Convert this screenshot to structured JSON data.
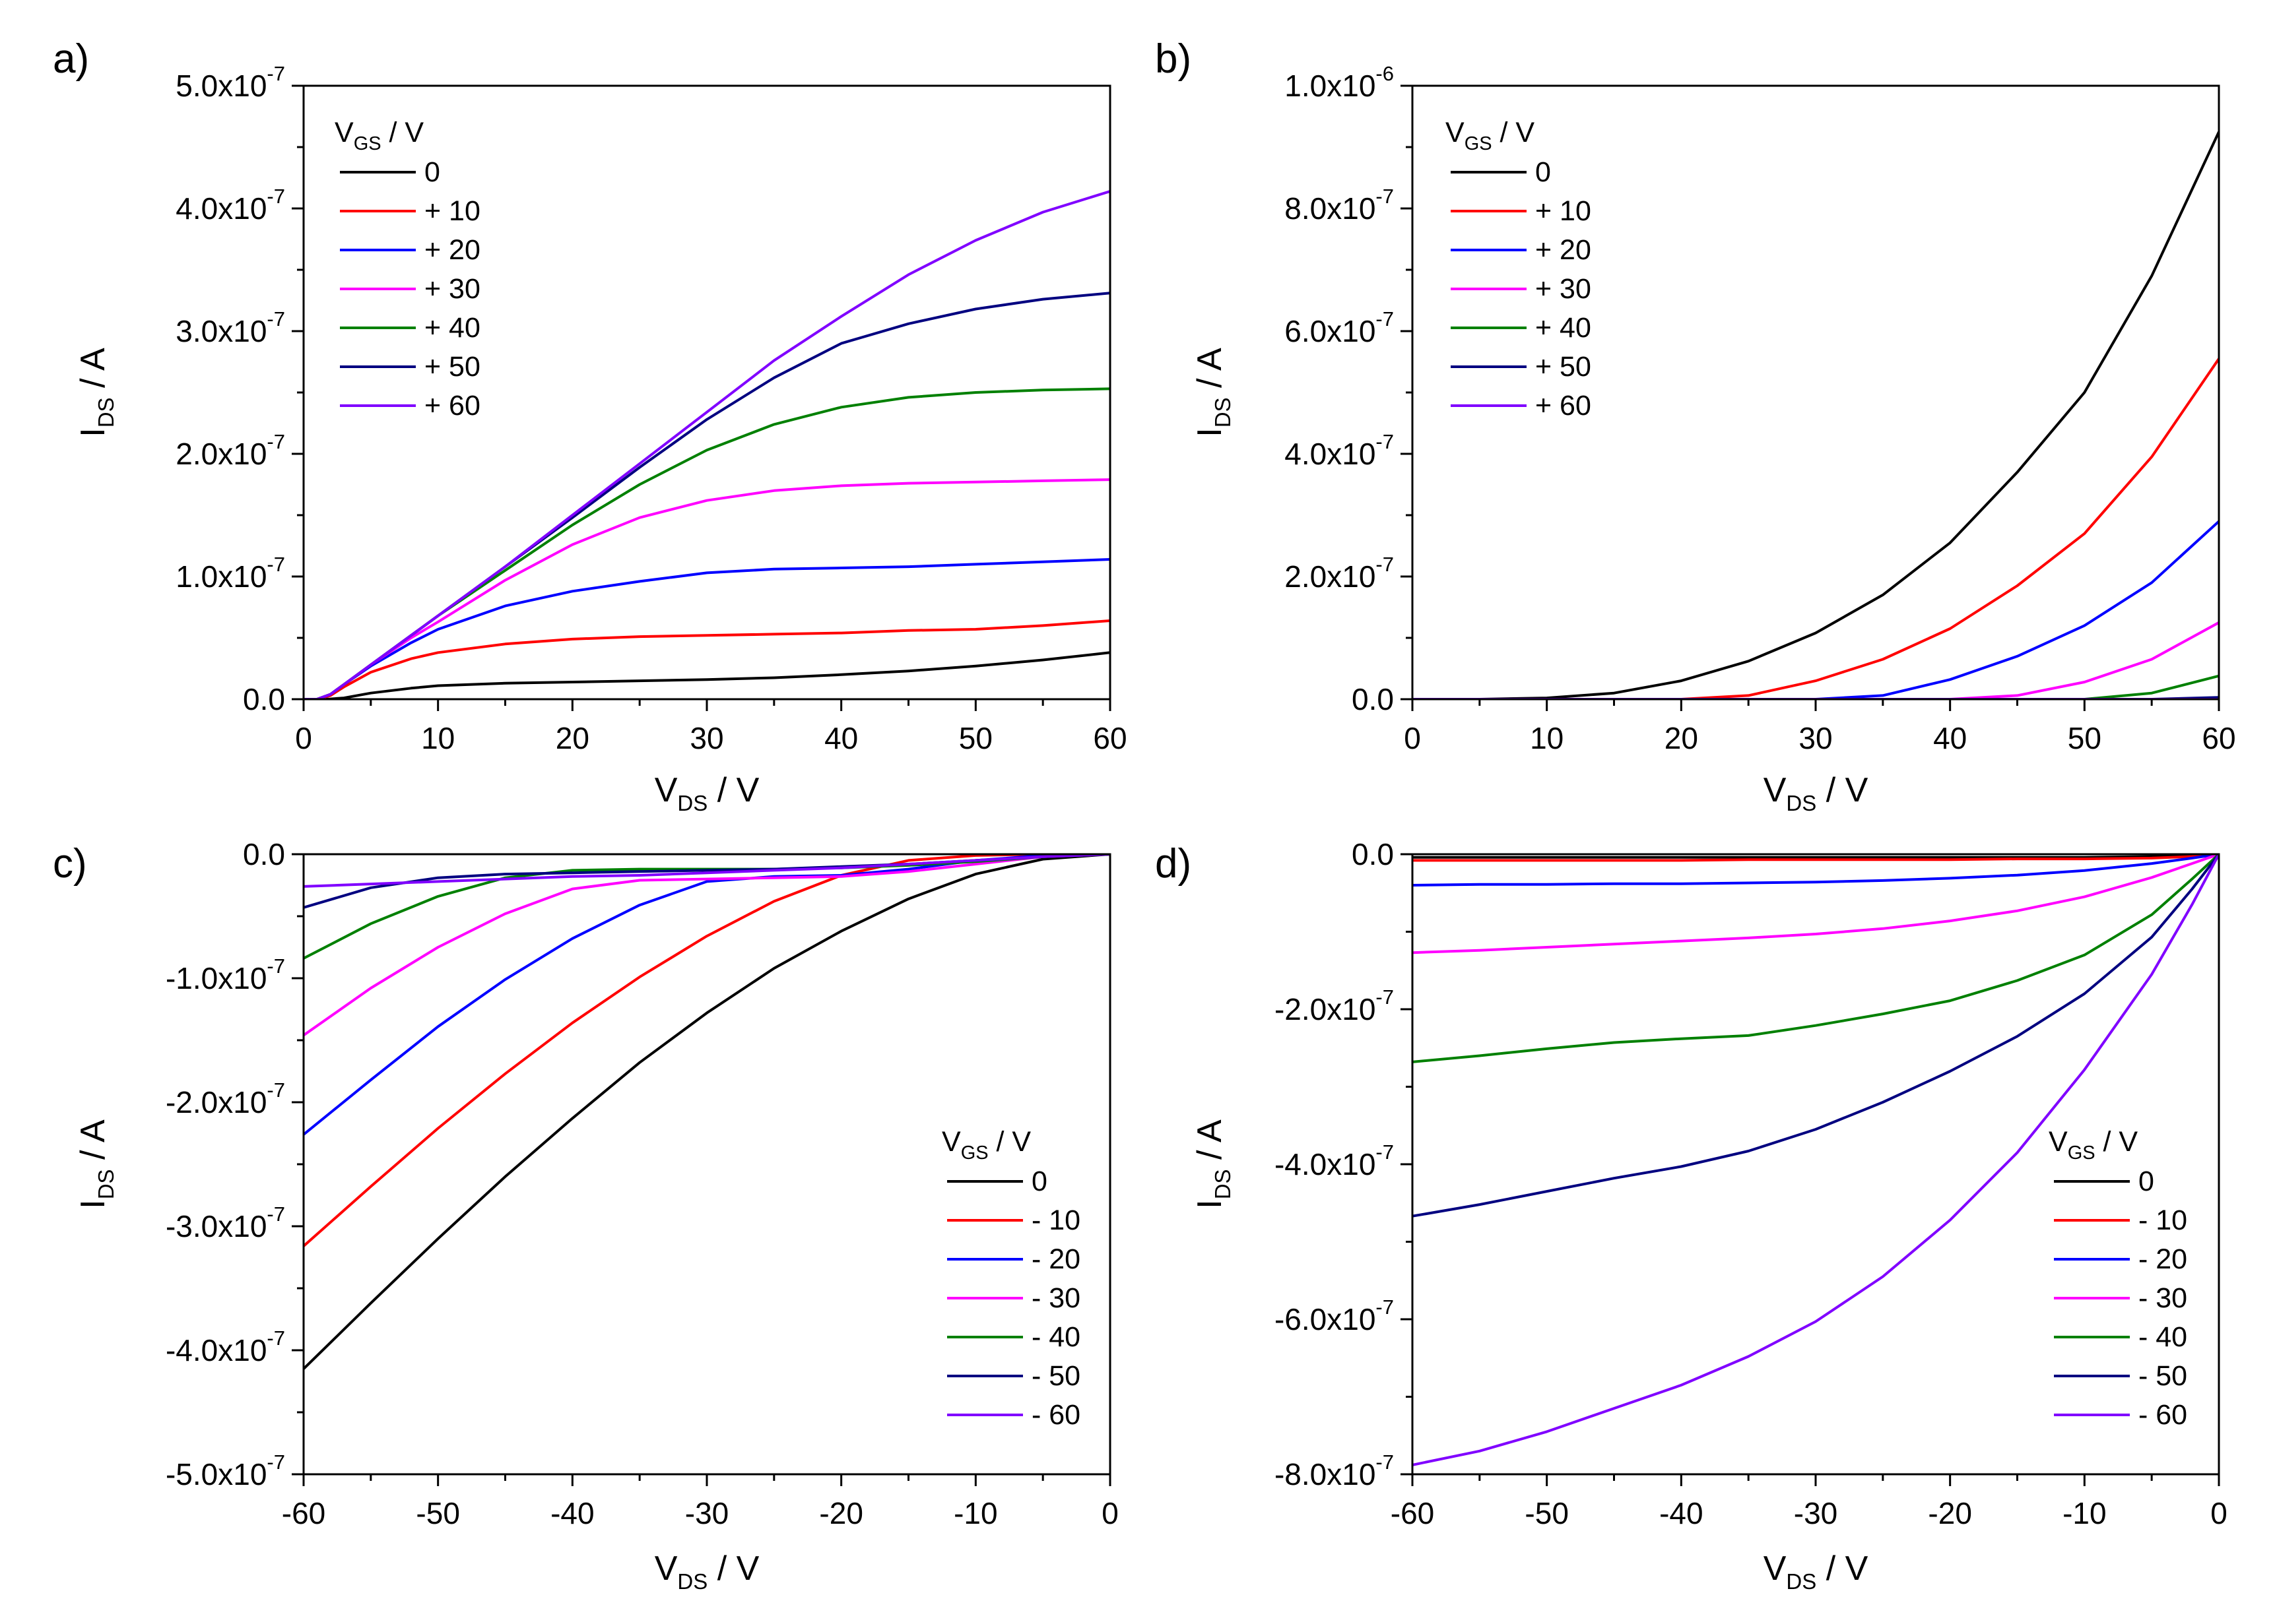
{
  "colors": {
    "0": "#000000",
    "10": "#ff0000",
    "20": "#0000ff",
    "30": "#ff00ff",
    "40": "#008000",
    "50": "#000080",
    "60": "#8000ff"
  },
  "chart_data": [
    {
      "panel": "a)",
      "type": "line",
      "xlabel": {
        "main": "V",
        "sub": "DS",
        "unit": " / V"
      },
      "ylabel": {
        "main": "I",
        "sub": "DS",
        "unit": " / A"
      },
      "xlim": [
        0,
        60
      ],
      "ylim": [
        0,
        5e-07
      ],
      "xticks": [
        0,
        10,
        20,
        30,
        40,
        50,
        60
      ],
      "xtick_labels": [
        "0",
        "10",
        "20",
        "30",
        "40",
        "50",
        "60"
      ],
      "yticks": [
        0,
        1e-07,
        2e-07,
        3e-07,
        4e-07,
        5e-07
      ],
      "ytick_labels": [
        {
          "m": "0.0",
          "e": ""
        },
        {
          "m": "1.0x10",
          "e": "-7"
        },
        {
          "m": "2.0x10",
          "e": "-7"
        },
        {
          "m": "3.0x10",
          "e": "-7"
        },
        {
          "m": "4.0x10",
          "e": "-7"
        },
        {
          "m": "5.0x10",
          "e": "-7"
        }
      ],
      "legend": {
        "title_main": "V",
        "title_sub": "GS",
        "title_unit": " / V",
        "placement": "top-left",
        "entries": [
          "0",
          "+ 10",
          "+ 20",
          "+ 30",
          "+ 40",
          "+ 50",
          "+ 60"
        ]
      },
      "x": [
        0,
        1,
        2,
        3,
        5,
        8,
        10,
        15,
        20,
        25,
        30,
        35,
        40,
        45,
        50,
        55,
        60
      ],
      "series": [
        {
          "name": "0",
          "color_key": "0",
          "values": [
            0,
            0,
            2e-10,
            1e-09,
            5e-09,
            9e-09,
            1.1e-08,
            1.3e-08,
            1.4e-08,
            1.5e-08,
            1.6e-08,
            1.75e-08,
            2e-08,
            2.3e-08,
            2.7e-08,
            3.2e-08,
            3.8e-08
          ]
        },
        {
          "name": "+ 10",
          "color_key": "10",
          "values": [
            0,
            0,
            3e-09,
            1e-08,
            2.2e-08,
            3.3e-08,
            3.8e-08,
            4.5e-08,
            4.9e-08,
            5.1e-08,
            5.2e-08,
            5.3e-08,
            5.4e-08,
            5.6e-08,
            5.7e-08,
            6e-08,
            6.4e-08
          ]
        },
        {
          "name": "+ 20",
          "color_key": "20",
          "values": [
            0,
            0,
            4e-09,
            1.2e-08,
            2.7e-08,
            4.6e-08,
            5.7e-08,
            7.6e-08,
            8.8e-08,
            9.6e-08,
            1.03e-07,
            1.06e-07,
            1.07e-07,
            1.08e-07,
            1.1e-07,
            1.12e-07,
            1.14e-07
          ]
        },
        {
          "name": "+ 30",
          "color_key": "30",
          "values": [
            0,
            0,
            4e-09,
            1.2e-08,
            2.8e-08,
            5e-08,
            6.3e-08,
            9.7e-08,
            1.26e-07,
            1.48e-07,
            1.62e-07,
            1.7e-07,
            1.74e-07,
            1.76e-07,
            1.77e-07,
            1.78e-07,
            1.79e-07
          ]
        },
        {
          "name": "+ 40",
          "color_key": "40",
          "values": [
            0,
            0,
            4e-09,
            1.2e-08,
            2.8e-08,
            5.2e-08,
            6.8e-08,
            1.05e-07,
            1.42e-07,
            1.75e-07,
            2.03e-07,
            2.24e-07,
            2.38e-07,
            2.46e-07,
            2.5e-07,
            2.52e-07,
            2.53e-07
          ]
        },
        {
          "name": "+ 50",
          "color_key": "50",
          "values": [
            0,
            0,
            4e-09,
            1.2e-08,
            2.8e-08,
            5.2e-08,
            6.8e-08,
            1.08e-07,
            1.48e-07,
            1.89e-07,
            2.28e-07,
            2.62e-07,
            2.9e-07,
            3.06e-07,
            3.18e-07,
            3.26e-07,
            3.31e-07
          ]
        },
        {
          "name": "+ 60",
          "color_key": "60",
          "values": [
            0,
            0,
            4e-09,
            1.2e-08,
            2.8e-08,
            5.2e-08,
            6.8e-08,
            1.08e-07,
            1.5e-07,
            1.92e-07,
            2.34e-07,
            2.76e-07,
            3.12e-07,
            3.46e-07,
            3.74e-07,
            3.97e-07,
            4.14e-07
          ]
        }
      ]
    },
    {
      "panel": "b)",
      "type": "line",
      "xlabel": {
        "main": "V",
        "sub": "DS",
        "unit": " / V"
      },
      "ylabel": {
        "main": "I",
        "sub": "DS",
        "unit": " / A"
      },
      "xlim": [
        0,
        60
      ],
      "ylim": [
        0,
        1e-06
      ],
      "xticks": [
        0,
        10,
        20,
        30,
        40,
        50,
        60
      ],
      "xtick_labels": [
        "0",
        "10",
        "20",
        "30",
        "40",
        "50",
        "60"
      ],
      "yticks": [
        0,
        2e-07,
        4e-07,
        6e-07,
        8e-07,
        1e-06
      ],
      "ytick_labels": [
        {
          "m": "0.0",
          "e": ""
        },
        {
          "m": "2.0x10",
          "e": "-7"
        },
        {
          "m": "4.0x10",
          "e": "-7"
        },
        {
          "m": "6.0x10",
          "e": "-7"
        },
        {
          "m": "8.0x10",
          "e": "-7"
        },
        {
          "m": "1.0x10",
          "e": "-6"
        }
      ],
      "legend": {
        "title_main": "V",
        "title_sub": "GS",
        "title_unit": " / V",
        "placement": "top-left",
        "entries": [
          "0",
          "+ 10",
          "+ 20",
          "+ 30",
          "+ 40",
          "+ 50",
          "+ 60"
        ]
      },
      "x": [
        0,
        5,
        10,
        15,
        20,
        25,
        30,
        35,
        40,
        45,
        50,
        55,
        60
      ],
      "series": [
        {
          "name": "0",
          "color_key": "0",
          "values": [
            0,
            0,
            2e-09,
            1e-08,
            3e-08,
            6.2e-08,
            1.08e-07,
            1.7e-07,
            2.55e-07,
            3.7e-07,
            5e-07,
            6.9e-07,
            9.25e-07
          ]
        },
        {
          "name": "+ 10",
          "color_key": "10",
          "values": [
            0,
            0,
            0,
            0,
            0,
            6e-09,
            3e-08,
            6.5e-08,
            1.15e-07,
            1.85e-07,
            2.7e-07,
            3.95e-07,
            5.55e-07
          ]
        },
        {
          "name": "+ 20",
          "color_key": "20",
          "values": [
            0,
            0,
            0,
            0,
            0,
            0,
            0,
            6e-09,
            3.2e-08,
            7e-08,
            1.2e-07,
            1.9e-07,
            2.9e-07
          ]
        },
        {
          "name": "+ 30",
          "color_key": "30",
          "values": [
            0,
            0,
            0,
            0,
            0,
            0,
            0,
            0,
            0,
            6e-09,
            2.8e-08,
            6.5e-08,
            1.25e-07
          ]
        },
        {
          "name": "+ 40",
          "color_key": "40",
          "values": [
            0,
            0,
            0,
            0,
            0,
            0,
            0,
            0,
            0,
            0,
            0,
            1e-08,
            3.8e-08
          ]
        },
        {
          "name": "+ 50",
          "color_key": "50",
          "values": [
            0,
            0,
            0,
            0,
            0,
            0,
            0,
            0,
            0,
            0,
            0,
            0,
            3e-09
          ]
        },
        {
          "name": "+ 60",
          "color_key": "60",
          "values": [
            0,
            0,
            0,
            0,
            0,
            0,
            0,
            0,
            0,
            0,
            0,
            0,
            0
          ]
        }
      ]
    },
    {
      "panel": "c)",
      "type": "line",
      "xlabel": {
        "main": "V",
        "sub": "DS",
        "unit": " / V"
      },
      "ylabel": {
        "main": "I",
        "sub": "DS",
        "unit": " / A"
      },
      "xlim": [
        -60,
        0
      ],
      "ylim": [
        -5e-07,
        0
      ],
      "xticks": [
        -60,
        -50,
        -40,
        -30,
        -20,
        -10,
        0
      ],
      "xtick_labels": [
        "-60",
        "-50",
        "-40",
        "-30",
        "-20",
        "-10",
        "0"
      ],
      "yticks": [
        0,
        -1e-07,
        -2e-07,
        -3e-07,
        -4e-07,
        -5e-07
      ],
      "ytick_labels": [
        {
          "m": "0.0",
          "e": ""
        },
        {
          "m": "-1.0x10",
          "e": "-7"
        },
        {
          "m": "-2.0x10",
          "e": "-7"
        },
        {
          "m": "-3.0x10",
          "e": "-7"
        },
        {
          "m": "-4.0x10",
          "e": "-7"
        },
        {
          "m": "-5.0x10",
          "e": "-7"
        }
      ],
      "legend": {
        "title_main": "V",
        "title_sub": "GS",
        "title_unit": " / V",
        "placement": "bottom-right",
        "entries": [
          "0",
          "- 10",
          "- 20",
          "- 30",
          "- 40",
          "- 50",
          "- 60"
        ]
      },
      "x": [
        -60,
        -55,
        -50,
        -45,
        -40,
        -35,
        -30,
        -25,
        -20,
        -15,
        -10,
        -5,
        0
      ],
      "series": [
        {
          "name": "0",
          "color_key": "0",
          "values": [
            -4.15e-07,
            -3.62e-07,
            -3.1e-07,
            -2.6e-07,
            -2.13e-07,
            -1.68e-07,
            -1.28e-07,
            -9.2e-08,
            -6.2e-08,
            -3.6e-08,
            -1.6e-08,
            -4e-09,
            0
          ]
        },
        {
          "name": "- 10",
          "color_key": "10",
          "values": [
            -3.16e-07,
            -2.68e-07,
            -2.21e-07,
            -1.77e-07,
            -1.36e-07,
            -9.9e-08,
            -6.6e-08,
            -3.8e-08,
            -1.7e-08,
            -5e-09,
            -1e-09,
            0,
            0
          ]
        },
        {
          "name": "- 20",
          "color_key": "20",
          "values": [
            -2.26e-07,
            -1.82e-07,
            -1.39e-07,
            -1.01e-07,
            -6.8e-08,
            -4.1e-08,
            -2.2e-08,
            -1.8e-08,
            -1.7e-08,
            -1.2e-08,
            -5e-09,
            -1e-09,
            0
          ]
        },
        {
          "name": "- 30",
          "color_key": "30",
          "values": [
            -1.46e-07,
            -1.08e-07,
            -7.5e-08,
            -4.8e-08,
            -2.8e-08,
            -2.1e-08,
            -2e-08,
            -1.9e-08,
            -1.8e-08,
            -1.4e-08,
            -8e-09,
            -2e-09,
            0
          ]
        },
        {
          "name": "- 40",
          "color_key": "40",
          "values": [
            -8.4e-08,
            -5.6e-08,
            -3.4e-08,
            -1.9e-08,
            -1.3e-08,
            -1.2e-08,
            -1.2e-08,
            -1.2e-08,
            -1.1e-08,
            -9e-09,
            -6e-09,
            -2e-09,
            0
          ]
        },
        {
          "name": "- 50",
          "color_key": "50",
          "values": [
            -4.3e-08,
            -2.7e-08,
            -1.9e-08,
            -1.6e-08,
            -1.5e-08,
            -1.4e-08,
            -1.3e-08,
            -1.2e-08,
            -1e-08,
            -8e-09,
            -5e-09,
            -2e-09,
            0
          ]
        },
        {
          "name": "- 60",
          "color_key": "60",
          "values": [
            -2.6e-08,
            -2.4e-08,
            -2.2e-08,
            -2e-08,
            -1.8e-08,
            -1.7e-08,
            -1.5e-08,
            -1.3e-08,
            -1.1e-08,
            -8e-09,
            -5e-09,
            -2e-09,
            0
          ]
        }
      ]
    },
    {
      "panel": "d)",
      "type": "line",
      "xlabel": {
        "main": "V",
        "sub": "DS",
        "unit": " / V"
      },
      "ylabel": {
        "main": "I",
        "sub": "DS",
        "unit": " / A"
      },
      "xlim": [
        -60,
        0
      ],
      "ylim": [
        -8e-07,
        0
      ],
      "xticks": [
        -60,
        -50,
        -40,
        -30,
        -20,
        -10,
        0
      ],
      "xtick_labels": [
        "-60",
        "-50",
        "-40",
        "-30",
        "-20",
        "-10",
        "0"
      ],
      "yticks": [
        0,
        -2e-07,
        -4e-07,
        -6e-07,
        -8e-07
      ],
      "ytick_labels": [
        {
          "m": "0.0",
          "e": ""
        },
        {
          "m": "-2.0x10",
          "e": "-7"
        },
        {
          "m": "-4.0x10",
          "e": "-7"
        },
        {
          "m": "-6.0x10",
          "e": "-7"
        },
        {
          "m": "-8.0x10",
          "e": "-7"
        }
      ],
      "legend": {
        "title_main": "V",
        "title_sub": "GS",
        "title_unit": " / V",
        "placement": "bottom-right",
        "entries": [
          "0",
          "- 10",
          "- 20",
          "- 30",
          "- 40",
          "- 50",
          "- 60"
        ]
      },
      "x": [
        -60,
        -55,
        -50,
        -45,
        -40,
        -35,
        -30,
        -25,
        -20,
        -15,
        -10,
        -5,
        -2,
        0
      ],
      "series": [
        {
          "name": "0",
          "color_key": "0",
          "values": [
            -4e-09,
            -4e-09,
            -4e-09,
            -4e-09,
            -4e-09,
            -4e-09,
            -4e-09,
            -4e-09,
            -4e-09,
            -4e-09,
            -4e-09,
            -3e-09,
            -2e-09,
            0
          ]
        },
        {
          "name": "- 10",
          "color_key": "10",
          "values": [
            -8e-09,
            -8e-09,
            -8e-09,
            -8e-09,
            -8e-09,
            -7e-09,
            -7e-09,
            -7e-09,
            -7e-09,
            -6e-09,
            -6e-09,
            -5e-09,
            -3e-09,
            0
          ]
        },
        {
          "name": "- 20",
          "color_key": "20",
          "values": [
            -4e-08,
            -3.9e-08,
            -3.9e-08,
            -3.8e-08,
            -3.8e-08,
            -3.7e-08,
            -3.6e-08,
            -3.4e-08,
            -3.1e-08,
            -2.7e-08,
            -2.1e-08,
            -1.2e-08,
            -5e-09,
            0
          ]
        },
        {
          "name": "- 30",
          "color_key": "30",
          "values": [
            -1.27e-07,
            -1.24e-07,
            -1.2e-07,
            -1.16e-07,
            -1.12e-07,
            -1.08e-07,
            -1.03e-07,
            -9.6e-08,
            -8.6e-08,
            -7.3e-08,
            -5.5e-08,
            -3e-08,
            -1.2e-08,
            0
          ]
        },
        {
          "name": "- 40",
          "color_key": "40",
          "values": [
            -2.68e-07,
            -2.6e-07,
            -2.51e-07,
            -2.43e-07,
            -2.38e-07,
            -2.34e-07,
            -2.21e-07,
            -2.06e-07,
            -1.89e-07,
            -1.63e-07,
            -1.3e-07,
            -7.8e-08,
            -3.2e-08,
            0
          ]
        },
        {
          "name": "- 50",
          "color_key": "50",
          "values": [
            -4.67e-07,
            -4.52e-07,
            -4.35e-07,
            -4.18e-07,
            -4.03e-07,
            -3.83e-07,
            -3.55e-07,
            -3.2e-07,
            -2.8e-07,
            -2.35e-07,
            -1.8e-07,
            -1.07e-07,
            -4.5e-08,
            0
          ]
        },
        {
          "name": "- 60",
          "color_key": "60",
          "values": [
            -7.88e-07,
            -7.7e-07,
            -7.45e-07,
            -7.15e-07,
            -6.85e-07,
            -6.48e-07,
            -6.03e-07,
            -5.45e-07,
            -4.72e-07,
            -3.85e-07,
            -2.78e-07,
            -1.55e-07,
            -6.5e-08,
            0
          ]
        }
      ]
    }
  ]
}
